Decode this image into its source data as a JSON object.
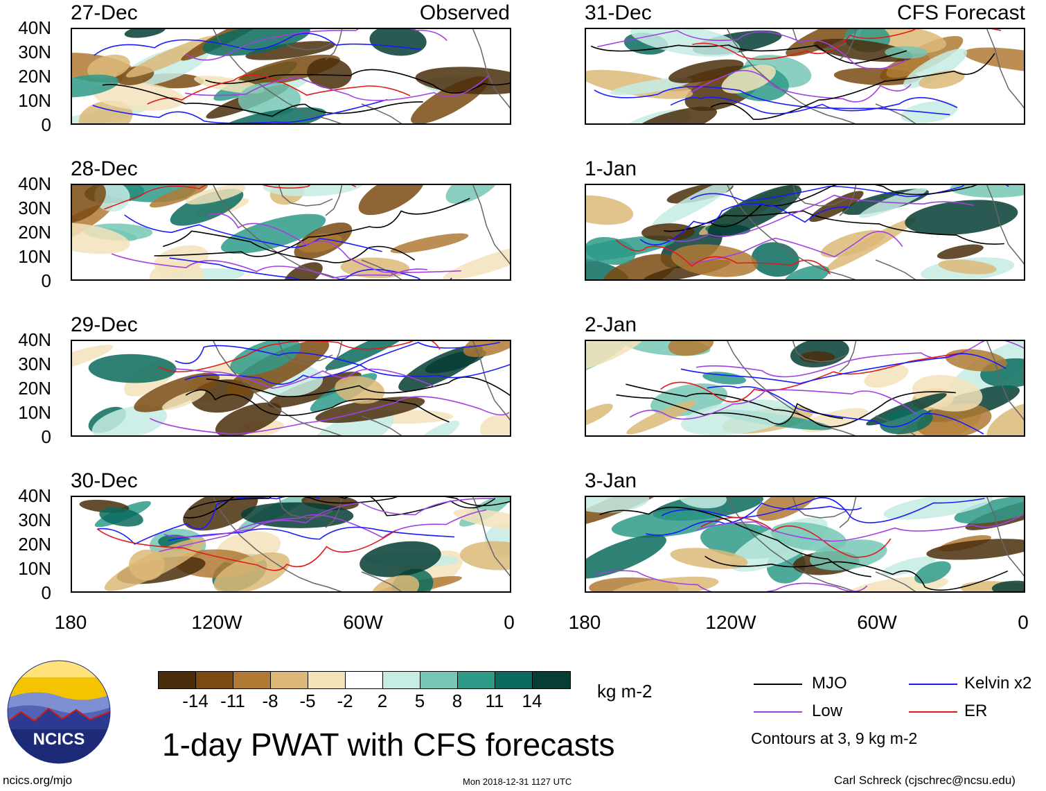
{
  "left_header": "Observed",
  "right_header": "CFS Forecast",
  "panels_left": [
    "27-Dec",
    "28-Dec",
    "29-Dec",
    "30-Dec"
  ],
  "panels_right": [
    "31-Dec",
    "1-Jan",
    "2-Jan",
    "3-Jan"
  ],
  "y_ticks": [
    "40N",
    "30N",
    "20N",
    "10N",
    "0"
  ],
  "x_ticks": [
    "180",
    "120W",
    "60W",
    "0"
  ],
  "colorbar": {
    "colors": [
      "#4a2e0c",
      "#7a4a12",
      "#b07a35",
      "#dcb878",
      "#f3e3bb",
      "#ffffff",
      "#c6ece4",
      "#76c7b4",
      "#2e9a88",
      "#0a6b5e",
      "#063d34"
    ],
    "labels": [
      "-14",
      "-11",
      "-8",
      "-5",
      "-2",
      "2",
      "5",
      "8",
      "11",
      "14"
    ],
    "units": "kg m-2"
  },
  "title": "1-day PWAT with CFS forecasts",
  "legend": [
    {
      "label": "MJO",
      "color": "#000000"
    },
    {
      "label": "Kelvin x2",
      "color": "#1a1aff"
    },
    {
      "label": "Low",
      "color": "#a040e0"
    },
    {
      "label": "ER",
      "color": "#e01a1a"
    }
  ],
  "contour_note": "Contours at 3, 9 kg m-2",
  "logo_text": "NCICS",
  "footer": {
    "left": "ncics.org/mjo",
    "center": "Mon 2018-12-31 1127 UTC",
    "right": "Carl Schreck (cjschrec@ncsu.edu)"
  }
}
